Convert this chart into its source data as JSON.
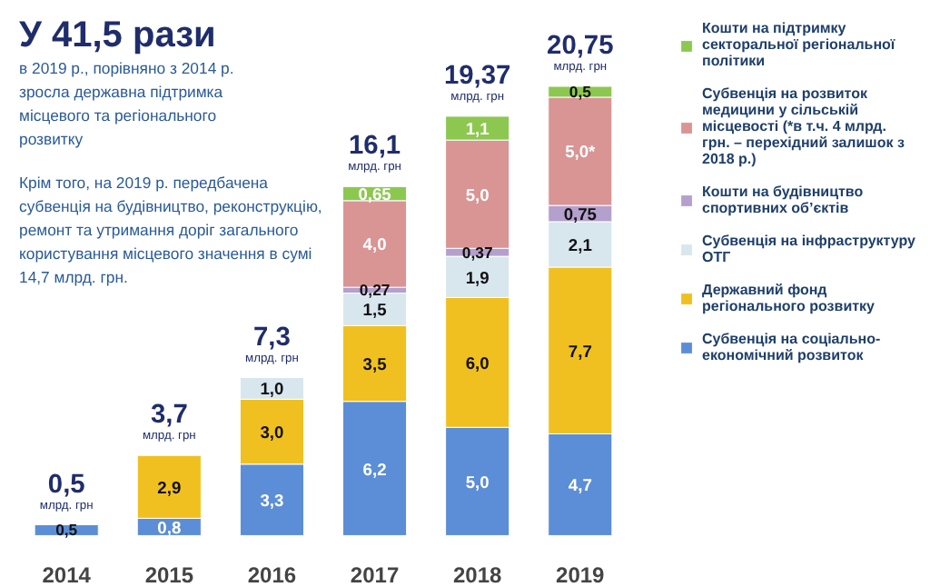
{
  "chart_data": {
    "type": "bar",
    "stacked": true,
    "legend": "right",
    "title": "У 41,5 рази",
    "subtitle": "в 2019 р., порівняно з 2014 р. зросла державна підтримка місцевого та регіонального розвитку",
    "categories": [
      "2014",
      "2015",
      "2016",
      "2017",
      "2018",
      "2019"
    ],
    "series": [
      {
        "name": "Субвенція на соціально-економічний розвиток",
        "color": "#5b8ed6",
        "values": [
          0.5,
          0.8,
          3.3,
          6.2,
          5.0,
          4.7
        ],
        "value_labels": [
          "0,5",
          "0,8",
          "3,3",
          "6,2",
          "5,0",
          "4,7"
        ]
      },
      {
        "name": "Державний фонд регіонального розвитку",
        "color": "#f0c020",
        "values": [
          null,
          2.9,
          3.0,
          3.5,
          6.0,
          7.7
        ],
        "value_labels": [
          null,
          "2,9",
          "3,0",
          "3,5",
          "6,0",
          "7,7"
        ]
      },
      {
        "name": "Субвенція на інфраструктуру ОТГ",
        "color": "#d8e6ee",
        "values": [
          null,
          null,
          1.0,
          1.5,
          1.9,
          2.1
        ],
        "value_labels": [
          null,
          null,
          "1,0",
          "1,5",
          "1,9",
          "2,1"
        ]
      },
      {
        "name": "Кошти на будівництво спортивних об’єктів",
        "color": "#b4a0cc",
        "values": [
          null,
          null,
          null,
          0.27,
          0.37,
          0.75
        ],
        "value_labels": [
          null,
          null,
          null,
          "0,27",
          "0,37",
          "0,75"
        ]
      },
      {
        "name": "Субвенція на розвиток медицини у сільській місцевості (*в т.ч. 4 млрд. грн. – перехідний залишок з 2018 р.)",
        "color": "#d99494",
        "values": [
          null,
          null,
          null,
          4.0,
          5.0,
          5.0
        ],
        "value_labels": [
          null,
          null,
          null,
          "4,0",
          "5,0",
          "5,0*"
        ]
      },
      {
        "name": "Кошти на підтримку секторальної регіональної політики",
        "color": "#8cc850",
        "values": [
          null,
          null,
          null,
          0.65,
          1.1,
          0.5
        ],
        "value_labels": [
          null,
          null,
          null,
          "0,65",
          "1,1",
          "0,5"
        ]
      }
    ],
    "totals": [
      "0,5",
      "3,7",
      "7,3",
      "16,1",
      "19,37",
      "20,75"
    ],
    "annotations": [
      "Крім того, на 2019 р. передбачена субвенція на будівництво, реконструкцію, ремонт та утримання доріг загального користування місцевого значення в сумі 14,7 млрд. грн.",
      "млрд. грн",
      "млрд. грн",
      "млрд. грн",
      "млрд. грн",
      "млрд. грн",
      "млрд. грн"
    ]
  }
}
